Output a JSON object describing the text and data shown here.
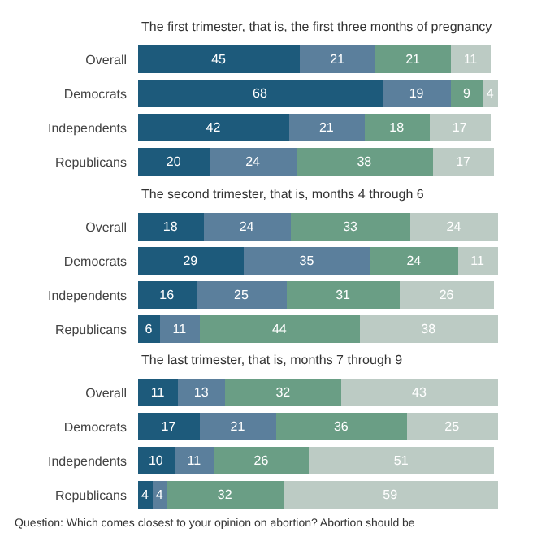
{
  "chart_data": [
    {
      "type": "bar",
      "orientation": "horizontal",
      "stacked": true,
      "data_labels": true,
      "title": "The first trimester, that is, the first three months of pregnancy",
      "categories": [
        "Overall",
        "Democrats",
        "Independents",
        "Republicans"
      ],
      "series": [
        {
          "color": "#1d5a7b",
          "values": [
            45,
            68,
            42,
            20
          ]
        },
        {
          "color": "#5b7f9c",
          "values": [
            21,
            19,
            21,
            24
          ]
        },
        {
          "color": "#6a9e85",
          "values": [
            21,
            9,
            18,
            38
          ]
        },
        {
          "color": "#bccbc4",
          "values": [
            11,
            4,
            17,
            17
          ]
        }
      ]
    },
    {
      "type": "bar",
      "orientation": "horizontal",
      "stacked": true,
      "data_labels": true,
      "title": "The second trimester, that is, months 4 through 6",
      "categories": [
        "Overall",
        "Democrats",
        "Independents",
        "Republicans"
      ],
      "series": [
        {
          "color": "#1d5a7b",
          "values": [
            18,
            29,
            16,
            6
          ]
        },
        {
          "color": "#5b7f9c",
          "values": [
            24,
            35,
            25,
            11
          ]
        },
        {
          "color": "#6a9e85",
          "values": [
            33,
            24,
            31,
            44
          ]
        },
        {
          "color": "#bccbc4",
          "values": [
            24,
            11,
            26,
            38
          ]
        }
      ]
    },
    {
      "type": "bar",
      "orientation": "horizontal",
      "stacked": true,
      "data_labels": true,
      "title": "The last trimester, that is, months 7 through 9",
      "categories": [
        "Overall",
        "Democrats",
        "Independents",
        "Republicans"
      ],
      "series": [
        {
          "color": "#1d5a7b",
          "values": [
            11,
            17,
            10,
            4
          ]
        },
        {
          "color": "#5b7f9c",
          "values": [
            13,
            21,
            11,
            4
          ]
        },
        {
          "color": "#6a9e85",
          "values": [
            32,
            36,
            26,
            32
          ]
        },
        {
          "color": "#bccbc4",
          "values": [
            43,
            25,
            51,
            59
          ]
        }
      ],
      "annotations": [
        "Question: Which comes closest to your opinion on abortion? Abortion should be"
      ]
    }
  ]
}
